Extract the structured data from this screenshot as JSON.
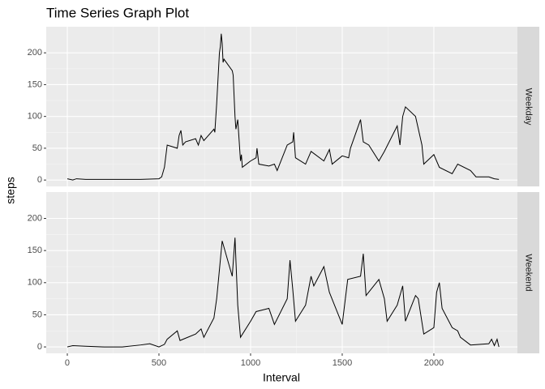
{
  "chart_data": {
    "type": "line",
    "title": "Time Series Graph Plot",
    "xlabel": "Interval",
    "ylabel": "steps",
    "xlim": [
      -115,
      2456
    ],
    "xticks": [
      0,
      500,
      1000,
      1500,
      2000
    ],
    "ylim": [
      -10,
      241
    ],
    "yticks": [
      0,
      50,
      100,
      150,
      200
    ],
    "grid": true,
    "color": "#000000",
    "panels": [
      {
        "strip": "Weekday",
        "x": [
          0,
          30,
          50,
          100,
          200,
          300,
          400,
          500,
          515,
          530,
          545,
          600,
          610,
          620,
          630,
          645,
          700,
          715,
          730,
          745,
          800,
          805,
          815,
          830,
          835,
          840,
          845,
          850,
          855,
          900,
          905,
          915,
          920,
          930,
          945,
          950,
          955,
          1000,
          1030,
          1035,
          1045,
          1100,
          1130,
          1145,
          1200,
          1230,
          1235,
          1245,
          1300,
          1330,
          1400,
          1430,
          1445,
          1500,
          1535,
          1545,
          1600,
          1615,
          1645,
          1700,
          1730,
          1800,
          1815,
          1830,
          1845,
          1900,
          1935,
          1945,
          2000,
          2030,
          2100,
          2130,
          2200,
          2230,
          2300,
          2330,
          2355
        ],
        "values": [
          2,
          0,
          2,
          1,
          1,
          1,
          1,
          2,
          5,
          20,
          55,
          50,
          70,
          78,
          55,
          60,
          65,
          55,
          70,
          62,
          80,
          75,
          120,
          200,
          210,
          230,
          215,
          185,
          190,
          172,
          165,
          100,
          80,
          95,
          30,
          40,
          20,
          30,
          35,
          50,
          25,
          22,
          25,
          15,
          55,
          60,
          75,
          35,
          25,
          45,
          30,
          48,
          25,
          38,
          35,
          50,
          95,
          60,
          55,
          30,
          45,
          85,
          55,
          100,
          115,
          100,
          55,
          25,
          40,
          20,
          10,
          25,
          15,
          5,
          5,
          2,
          1
        ]
      },
      {
        "strip": "Weekend",
        "x": [
          0,
          30,
          100,
          200,
          300,
          400,
          450,
          500,
          530,
          545,
          600,
          615,
          700,
          730,
          745,
          800,
          815,
          830,
          845,
          900,
          915,
          930,
          945,
          1000,
          1030,
          1100,
          1130,
          1200,
          1215,
          1230,
          1245,
          1300,
          1330,
          1345,
          1400,
          1430,
          1500,
          1515,
          1530,
          1600,
          1615,
          1630,
          1700,
          1730,
          1745,
          1800,
          1830,
          1845,
          1900,
          1915,
          1945,
          2000,
          2015,
          2030,
          2045,
          2100,
          2130,
          2145,
          2200,
          2300,
          2315,
          2330,
          2345,
          2355
        ],
        "values": [
          0,
          2,
          1,
          0,
          0,
          3,
          5,
          0,
          4,
          12,
          25,
          10,
          20,
          28,
          15,
          45,
          75,
          120,
          165,
          110,
          170,
          65,
          15,
          40,
          55,
          60,
          35,
          75,
          135,
          90,
          40,
          65,
          110,
          95,
          125,
          85,
          35,
          70,
          105,
          110,
          145,
          80,
          105,
          75,
          40,
          65,
          95,
          40,
          80,
          75,
          20,
          30,
          85,
          100,
          60,
          30,
          25,
          15,
          3,
          5,
          12,
          2,
          12,
          0
        ]
      }
    ]
  }
}
